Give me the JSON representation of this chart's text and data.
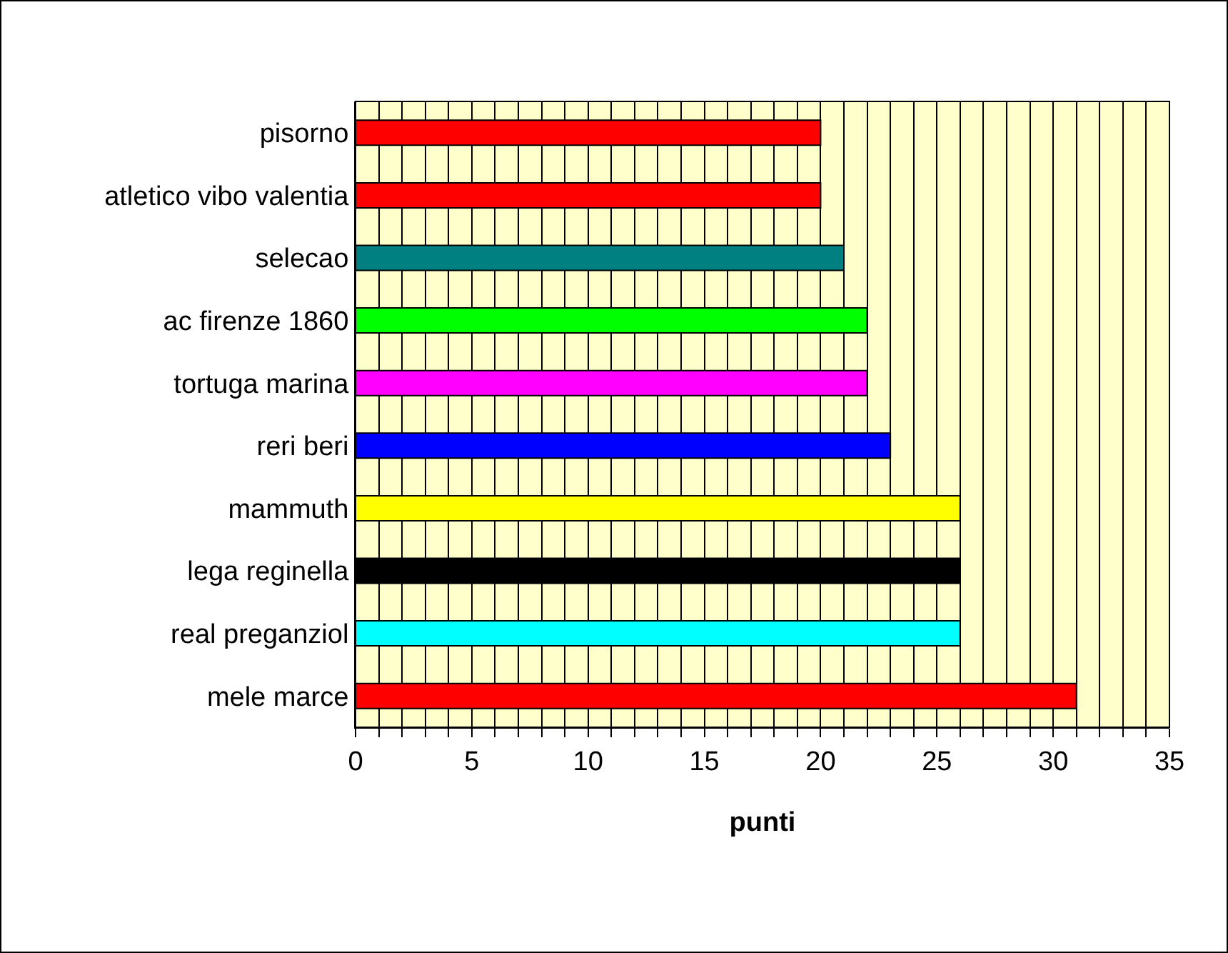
{
  "chart_data": {
    "type": "bar",
    "orientation": "horizontal",
    "xlabel": "punti",
    "categories": [
      "pisorno",
      "atletico vibo valentia",
      "selecao",
      "ac firenze 1860",
      "tortuga marina",
      "reri beri",
      "mammuth",
      "lega reginella",
      "real preganziol",
      "mele marce"
    ],
    "values": [
      20,
      20,
      21,
      22,
      22,
      23,
      26,
      26,
      26,
      31
    ],
    "colors": [
      "#ff0000",
      "#ff0000",
      "#008080",
      "#00ff00",
      "#ff00ff",
      "#0000ff",
      "#ffff00",
      "#000000",
      "#00ffff",
      "#ff0000"
    ],
    "xlim": [
      0,
      35
    ],
    "xticks": [
      0,
      {
        "value": 1,
        "label": null
      },
      {
        "value": 2,
        "label": null
      },
      {
        "value": 3,
        "label": null
      },
      {
        "value": 4,
        "label": null
      },
      5,
      {
        "value": 6,
        "label": null
      },
      {
        "value": 7,
        "label": null
      },
      {
        "value": 8,
        "label": null
      },
      {
        "value": 9,
        "label": null
      },
      10,
      {
        "value": 11,
        "label": null
      },
      {
        "value": 12,
        "label": null
      },
      {
        "value": 13,
        "label": null
      },
      {
        "value": 14,
        "label": null
      },
      15,
      {
        "value": 16,
        "label": null
      },
      {
        "value": 17,
        "label": null
      },
      {
        "value": 18,
        "label": null
      },
      {
        "value": 19,
        "label": null
      },
      20,
      {
        "value": 21,
        "label": null
      },
      {
        "value": 22,
        "label": null
      },
      {
        "value": 23,
        "label": null
      },
      {
        "value": 24,
        "label": null
      },
      25,
      {
        "value": 26,
        "label": null
      },
      {
        "value": 27,
        "label": null
      },
      {
        "value": 28,
        "label": null
      },
      {
        "value": 29,
        "label": null
      },
      30,
      {
        "value": 31,
        "label": null
      },
      {
        "value": 32,
        "label": null
      },
      {
        "value": 33,
        "label": null
      },
      {
        "value": 34,
        "label": null
      },
      35
    ],
    "grid": "x"
  }
}
